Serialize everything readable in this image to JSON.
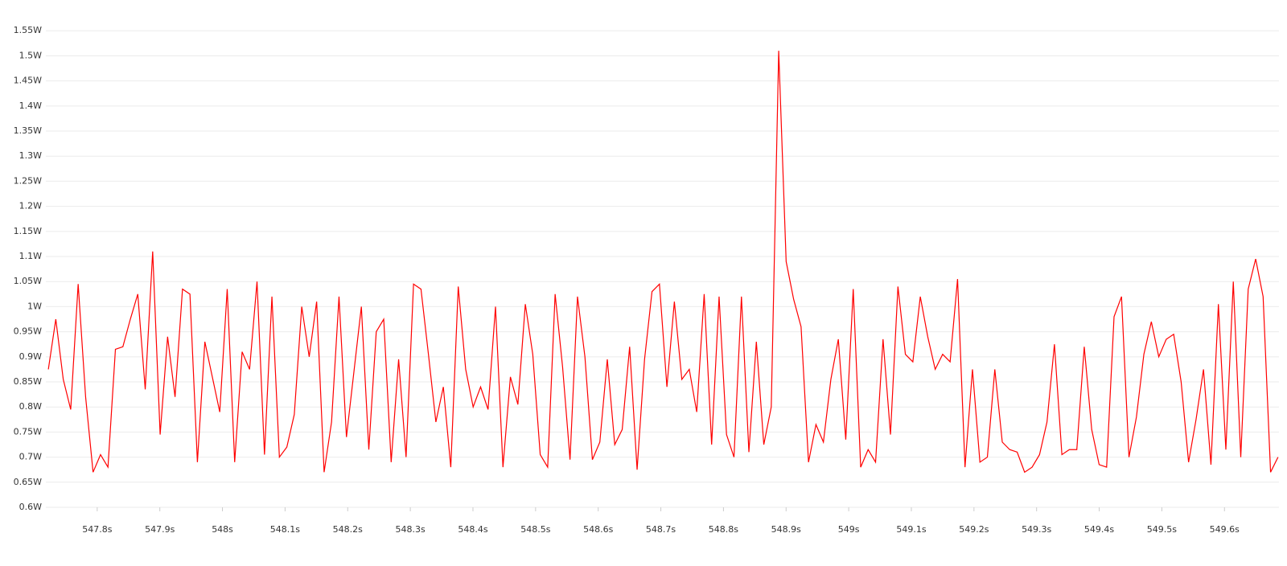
{
  "chart_data": {
    "type": "line",
    "color": "#ff0000",
    "grid": true,
    "xlim": [
      547.718,
      549.687
    ],
    "ylim": [
      0.6,
      1.56
    ],
    "yticks": [
      {
        "value": 0.6,
        "label": "0.6W"
      },
      {
        "value": 0.65,
        "label": "0.65W"
      },
      {
        "value": 0.7,
        "label": "0.7W"
      },
      {
        "value": 0.75,
        "label": "0.75W"
      },
      {
        "value": 0.8,
        "label": "0.8W"
      },
      {
        "value": 0.85,
        "label": "0.85W"
      },
      {
        "value": 0.9,
        "label": "0.9W"
      },
      {
        "value": 0.95,
        "label": "0.95W"
      },
      {
        "value": 1,
        "label": "1W"
      },
      {
        "value": 1.05,
        "label": "1.05W"
      },
      {
        "value": 1.1,
        "label": "1.1W"
      },
      {
        "value": 1.15,
        "label": "1.15W"
      },
      {
        "value": 1.2,
        "label": "1.2W"
      },
      {
        "value": 1.25,
        "label": "1.25W"
      },
      {
        "value": 1.3,
        "label": "1.3W"
      },
      {
        "value": 1.35,
        "label": "1.35W"
      },
      {
        "value": 1.4,
        "label": "1.4W"
      },
      {
        "value": 1.45,
        "label": "1.45W"
      },
      {
        "value": 1.5,
        "label": "1.5W"
      },
      {
        "value": 1.55,
        "label": "1.55W"
      }
    ],
    "xticks": [
      {
        "value": 547.8,
        "label": "547.8s"
      },
      {
        "value": 547.9,
        "label": "547.9s"
      },
      {
        "value": 548,
        "label": "548s"
      },
      {
        "value": 548.1,
        "label": "548.1s"
      },
      {
        "value": 548.2,
        "label": "548.2s"
      },
      {
        "value": 548.3,
        "label": "548.3s"
      },
      {
        "value": 548.4,
        "label": "548.4s"
      },
      {
        "value": 548.5,
        "label": "548.5s"
      },
      {
        "value": 548.6,
        "label": "548.6s"
      },
      {
        "value": 548.7,
        "label": "548.7s"
      },
      {
        "value": 548.8,
        "label": "548.8s"
      },
      {
        "value": 548.9,
        "label": "548.9s"
      },
      {
        "value": 549,
        "label": "549s"
      },
      {
        "value": 549.1,
        "label": "549.1s"
      },
      {
        "value": 549.2,
        "label": "549.2s"
      },
      {
        "value": 549.3,
        "label": "549.3s"
      },
      {
        "value": 549.4,
        "label": "549.4s"
      },
      {
        "value": 549.5,
        "label": "549.5s"
      },
      {
        "value": 549.6,
        "label": "549.6s"
      }
    ],
    "x": [
      547.722,
      547.7339,
      547.7458,
      547.7577,
      547.7696,
      547.7815,
      547.7934,
      547.8053,
      547.8172,
      547.8291,
      547.841,
      547.8529,
      547.8648,
      547.8767,
      547.8886,
      547.9005,
      547.9124,
      547.9243,
      547.9362,
      547.9481,
      547.96,
      547.9719,
      547.9838,
      547.9957,
      548.0076,
      548.0195,
      548.0314,
      548.0433,
      548.0552,
      548.0671,
      548.079,
      548.0909,
      548.1028,
      548.1147,
      548.1266,
      548.1385,
      548.1504,
      548.1623,
      548.1742,
      548.1861,
      548.198,
      548.2099,
      548.2218,
      548.2337,
      548.2456,
      548.2575,
      548.2694,
      548.2813,
      548.2932,
      548.3051,
      548.317,
      548.3289,
      548.3408,
      548.3527,
      548.3646,
      548.3765,
      548.3884,
      548.4003,
      548.4122,
      548.4241,
      548.436,
      548.4479,
      548.4598,
      548.4717,
      548.4836,
      548.4955,
      548.5074,
      548.5193,
      548.5312,
      548.5431,
      548.555,
      548.5669,
      548.5788,
      548.5907,
      548.6026,
      548.6145,
      548.6264,
      548.6383,
      548.6502,
      548.6621,
      548.674,
      548.6859,
      548.6978,
      548.7097,
      548.7216,
      548.7335,
      548.7454,
      548.7573,
      548.7692,
      548.7811,
      548.793,
      548.8049,
      548.8168,
      548.8287,
      548.8406,
      548.8525,
      548.8644,
      548.8763,
      548.8882,
      548.9001,
      548.912,
      548.9239,
      548.9358,
      548.9477,
      548.9596,
      548.9715,
      548.9834,
      548.9953,
      549.0072,
      549.0191,
      549.031,
      549.0429,
      549.0548,
      549.0667,
      549.0786,
      549.0905,
      549.1024,
      549.1143,
      549.1262,
      549.1381,
      549.15,
      549.1619,
      549.1738,
      549.1857,
      549.1976,
      549.2095,
      549.2214,
      549.2333,
      549.2452,
      549.2571,
      549.269,
      549.2809,
      549.2928,
      549.3047,
      549.3166,
      549.3285,
      549.3404,
      549.3523,
      549.3642,
      549.3761,
      549.388,
      549.3999,
      549.4118,
      549.4237,
      549.4356,
      549.4475,
      549.4594,
      549.4713,
      549.4832,
      549.4951,
      549.507,
      549.5189,
      549.5308,
      549.5427,
      549.5546,
      549.5665,
      549.5784,
      549.5903,
      549.6022,
      549.6141,
      549.626,
      549.6379,
      549.6498,
      549.6617,
      549.6736,
      549.6855
    ],
    "values": [
      0.875,
      0.975,
      0.855,
      0.795,
      1.045,
      0.82,
      0.67,
      0.705,
      0.68,
      0.915,
      0.92,
      0.975,
      1.025,
      0.835,
      1.11,
      0.745,
      0.94,
      0.82,
      1.035,
      1.025,
      0.69,
      0.93,
      0.86,
      0.79,
      1.035,
      0.69,
      0.91,
      0.875,
      1.05,
      0.705,
      1.02,
      0.7,
      0.72,
      0.785,
      1.0,
      0.9,
      1.01,
      0.67,
      0.77,
      1.02,
      0.74,
      0.87,
      1.0,
      0.715,
      0.95,
      0.975,
      0.69,
      0.895,
      0.7,
      1.045,
      1.035,
      0.905,
      0.77,
      0.84,
      0.68,
      1.04,
      0.875,
      0.8,
      0.84,
      0.795,
      1.0,
      0.68,
      0.86,
      0.805,
      1.005,
      0.905,
      0.705,
      0.68,
      1.025,
      0.88,
      0.695,
      1.02,
      0.9,
      0.695,
      0.73,
      0.895,
      0.725,
      0.755,
      0.92,
      0.675,
      0.895,
      1.03,
      1.045,
      0.84,
      1.01,
      0.855,
      0.875,
      0.79,
      1.025,
      0.725,
      1.02,
      0.745,
      0.7,
      1.02,
      0.71,
      0.93,
      0.725,
      0.8,
      1.51,
      1.09,
      1.015,
      0.96,
      0.69,
      0.765,
      0.73,
      0.855,
      0.935,
      0.735,
      1.035,
      0.68,
      0.715,
      0.69,
      0.935,
      0.745,
      1.04,
      0.905,
      0.89,
      1.02,
      0.94,
      0.875,
      0.905,
      0.89,
      1.055,
      0.68,
      0.875,
      0.69,
      0.7,
      0.875,
      0.73,
      0.715,
      0.71,
      0.67,
      0.68,
      0.705,
      0.77,
      0.925,
      0.705,
      0.715,
      0.715,
      0.92,
      0.755,
      0.685,
      0.68,
      0.98,
      1.02,
      0.7,
      0.78,
      0.905,
      0.97,
      0.9,
      0.935,
      0.945,
      0.85,
      0.69,
      0.775,
      0.875,
      0.685,
      1.005,
      0.715,
      1.05,
      0.7,
      1.035,
      1.095,
      1.02,
      0.67,
      0.7
    ]
  }
}
